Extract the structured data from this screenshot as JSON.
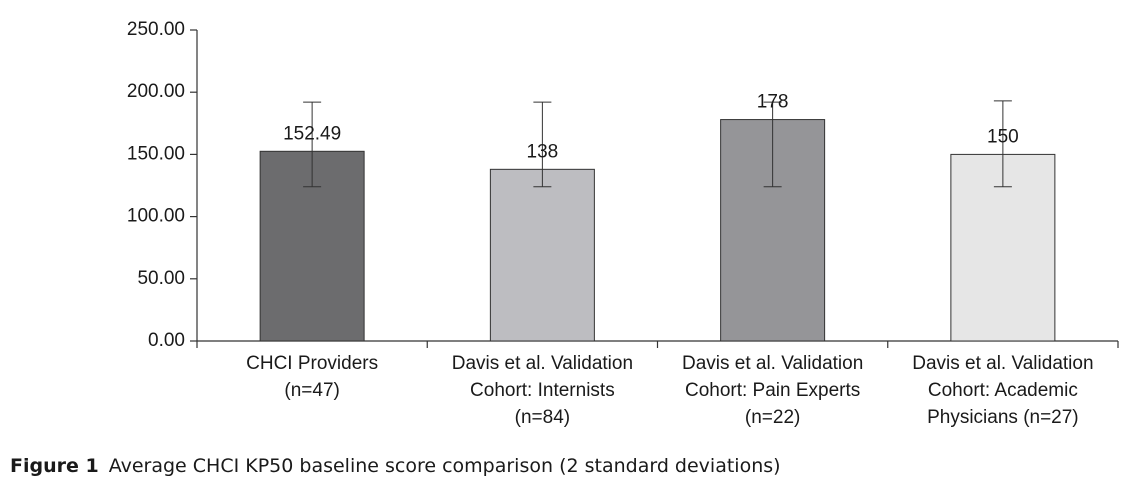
{
  "chart_data": {
    "type": "bar",
    "categories": [
      [
        "CHCI Providers",
        "(n=47)"
      ],
      [
        "Davis et al. Validation",
        "Cohort: Internists",
        "(n=84)"
      ],
      [
        "Davis et al. Validation",
        "Cohort: Pain Experts",
        "(n=22)"
      ],
      [
        "Davis et al. Validation",
        "Cohort: Academic",
        "Physicians (n=27)"
      ]
    ],
    "values": [
      152.49,
      138,
      178,
      150
    ],
    "colors": [
      "#6c6c6e",
      "#bdbdc1",
      "#959598",
      "#e6e6e6"
    ],
    "error_bars": [
      {
        "low": 124,
        "high": 192
      },
      {
        "low": 124,
        "high": 192
      },
      {
        "low": 124,
        "high": 192
      },
      {
        "low": 124,
        "high": 193
      }
    ],
    "ylim": [
      0,
      250
    ],
    "yticks": [
      {
        "value": 0,
        "label": "0.00"
      },
      {
        "value": 50,
        "label": "50.00"
      },
      {
        "value": 100,
        "label": "100.00"
      },
      {
        "value": 150,
        "label": "150.00"
      },
      {
        "value": 200,
        "label": "200.00"
      },
      {
        "value": 250,
        "label": "250.00"
      }
    ],
    "caption": {
      "label": "Figure 1",
      "text": "Average CHCI KP50 baseline score comparison (2 standard deviations)"
    }
  }
}
